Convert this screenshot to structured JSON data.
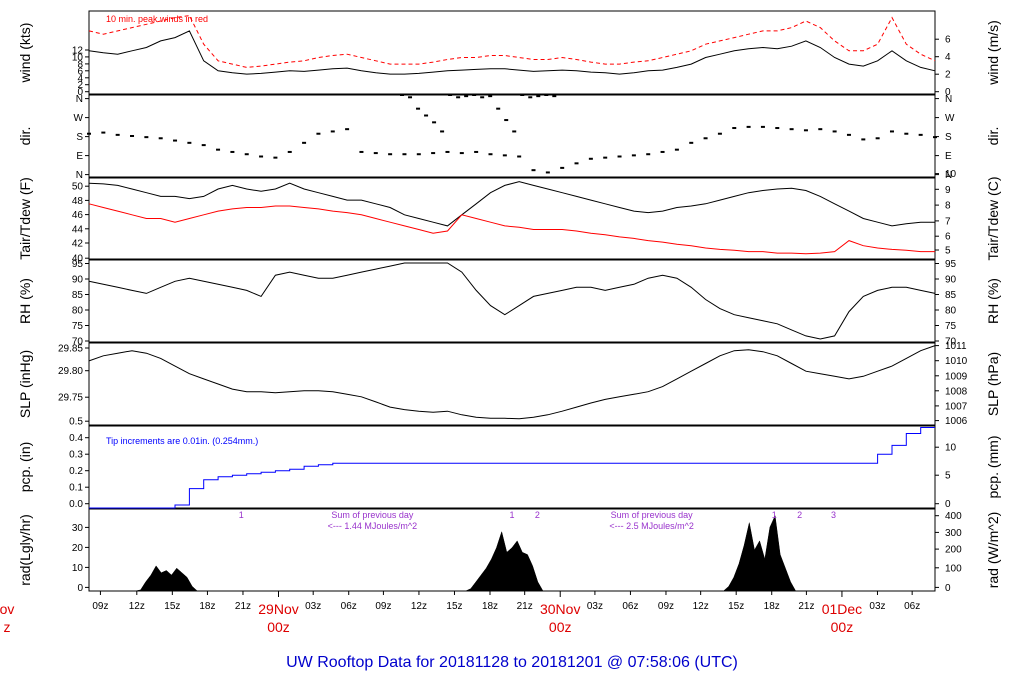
{
  "title": "UW Rooftop Data for 20181128  to  20181201 @ 07:58:06  (UTC)",
  "colors": {
    "black": "#000000",
    "red": "#ff0000",
    "blue": "#0000ff",
    "purple": "#9933cc",
    "title": "#0000cc"
  },
  "chart_data": [
    {
      "type": "line",
      "panel": "wind",
      "ylabel": "wind (kts)",
      "ylabel_right": "wind (m/s)",
      "ylim": [
        0,
        12.5
      ],
      "yticks": [
        0,
        2,
        4,
        6,
        8,
        10,
        12
      ],
      "yticks_right": [
        0,
        2,
        4,
        6
      ],
      "annotation": "10 min. peak winds in red",
      "series": [
        {
          "values": [
            6.5,
            6.2,
            6.0,
            6.5,
            7.0,
            8.0,
            8.5,
            9.5,
            5.0,
            3.5,
            3.2,
            3.0,
            3.1,
            3.3,
            3.5,
            3.4,
            3.6,
            3.8,
            3.9,
            3.5,
            3.2,
            3.0,
            3.0,
            3.1,
            3.3,
            3.5,
            3.6,
            3.7,
            3.8,
            3.8,
            3.6,
            3.4,
            3.5,
            3.6,
            3.5,
            3.3,
            3.2,
            3.0,
            3.2,
            3.5,
            3.6,
            4.0,
            4.5,
            5.5,
            6.0,
            6.5,
            6.8,
            7.0,
            6.8,
            7.2,
            8.0,
            7.0,
            5.5,
            4.5,
            4.2,
            5.0,
            6.5,
            5.0,
            4.0,
            3.5
          ]
        },
        {
          "values": [
            9.5,
            9.0,
            9.5,
            10.0,
            10.5,
            11.0,
            11.5,
            11.8,
            7.5,
            5.0,
            4.5,
            4.0,
            4.2,
            4.5,
            4.8,
            5.0,
            5.5,
            5.8,
            6.0,
            5.5,
            5.0,
            4.5,
            4.5,
            4.5,
            4.8,
            5.2,
            5.5,
            5.5,
            5.8,
            5.8,
            5.5,
            5.2,
            5.2,
            5.5,
            5.2,
            4.8,
            4.5,
            4.5,
            4.8,
            5.0,
            5.5,
            6.0,
            6.5,
            7.5,
            8.0,
            8.5,
            9.0,
            9.5,
            9.5,
            10.0,
            11.0,
            10.0,
            8.0,
            6.5,
            6.5,
            7.5,
            11.5,
            7.5,
            6.0,
            5.0
          ]
        }
      ]
    },
    {
      "type": "scatter",
      "panel": "dir",
      "ylabel": "dir.",
      "ylabel_right": "dir.",
      "ylim": [
        0,
        360
      ],
      "yticks": [
        "N",
        "E",
        "S",
        "W",
        "N"
      ],
      "series": [
        {
          "values": [
            190,
            195,
            185,
            180,
            175,
            170,
            160,
            150,
            140,
            120,
            110,
            100,
            90,
            85,
            110,
            150,
            190,
            200,
            210,
            110,
            105,
            100,
            100,
            100,
            105,
            110,
            105,
            110,
            100,
            95,
            90,
            30,
            20,
            40,
            60,
            80,
            85,
            90,
            95,
            100,
            110,
            120,
            150,
            170,
            190,
            215,
            220,
            220,
            215,
            210,
            205,
            210,
            200,
            185,
            165,
            170,
            200,
            190,
            185,
            175
          ]
        },
        {
          "values": [
            360,
            350,
            300,
            270,
            240,
            200,
            360,
            350,
            355,
            360,
            350,
            355,
            300,
            250,
            200,
            360,
            350,
            355,
            360,
            355
          ]
        }
      ]
    },
    {
      "type": "line",
      "panel": "temperature",
      "ylabel": "Tair/Tdew (F)",
      "ylabel_right": "Tair/Tdew (C)",
      "ylim": [
        40,
        51
      ],
      "yticks": [
        40,
        42,
        44,
        46,
        48,
        50
      ],
      "yticks_right": [
        5,
        6,
        7,
        8,
        9,
        10
      ],
      "series": [
        {
          "values": [
            50.3,
            50.2,
            50.0,
            49.5,
            49.0,
            48.5,
            48.5,
            48.2,
            48.5,
            49.5,
            50.0,
            49.5,
            49.2,
            49.5,
            50.3,
            49.5,
            49.0,
            48.5,
            48.0,
            48.0,
            47.5,
            47.0,
            46.0,
            45.5,
            45.0,
            44.5,
            46.0,
            47.5,
            49.0,
            50.0,
            50.5,
            50.0,
            49.5,
            49.0,
            48.5,
            48.0,
            47.5,
            47.0,
            46.5,
            46.3,
            46.5,
            47.0,
            47.2,
            47.5,
            48.0,
            48.5,
            49.0,
            49.3,
            49.5,
            49.6,
            49.3,
            48.5,
            47.5,
            46.5,
            45.5,
            45.0,
            44.5,
            44.8,
            45.0,
            45.0
          ]
        },
        {
          "values": [
            47.5,
            47.0,
            46.5,
            46.0,
            45.5,
            45.5,
            45.0,
            45.5,
            46.0,
            46.5,
            46.8,
            47.0,
            47.0,
            47.2,
            47.2,
            47.0,
            46.8,
            46.5,
            46.3,
            46.0,
            45.5,
            45.0,
            44.5,
            44.0,
            43.5,
            43.8,
            46.0,
            45.5,
            45.0,
            44.5,
            44.3,
            44.0,
            44.0,
            44.0,
            43.8,
            43.5,
            43.3,
            43.0,
            42.8,
            42.5,
            42.3,
            42.0,
            41.8,
            41.5,
            41.3,
            41.2,
            41.0,
            41.0,
            40.8,
            40.8,
            40.7,
            40.8,
            41.0,
            42.5,
            41.8,
            41.5,
            41.3,
            41.2,
            41.0,
            41.0
          ]
        }
      ]
    },
    {
      "type": "line",
      "panel": "rh",
      "ylabel": "RH (%)",
      "ylabel_right": "RH (%)",
      "ylim": [
        70,
        97
      ],
      "yticks": [
        70,
        75,
        80,
        85,
        90,
        95
      ],
      "series": [
        {
          "values": [
            90,
            89,
            88,
            87,
            86,
            88,
            90,
            91,
            90,
            89,
            88,
            87,
            85,
            92,
            93,
            92,
            91,
            91,
            92,
            93,
            94,
            95,
            96,
            96,
            96,
            96,
            93,
            87,
            82,
            79,
            82,
            85,
            86,
            87,
            88,
            88,
            87,
            88,
            89,
            91,
            92,
            91,
            88,
            84,
            81,
            79,
            78,
            77,
            76,
            74,
            72,
            71,
            72,
            80,
            85,
            87,
            88,
            88,
            87,
            86
          ]
        }
      ]
    },
    {
      "type": "line",
      "panel": "slp",
      "ylabel": "SLP (inHg)",
      "ylabel_right": "SLP (hPa)",
      "ylim": [
        29.695,
        29.855
      ],
      "yticks": [
        29.75,
        29.8,
        29.85
      ],
      "yticks_right": [
        1006,
        1007,
        1008,
        1009,
        1010,
        1011
      ],
      "series": [
        {
          "values": [
            29.82,
            29.83,
            29.835,
            29.84,
            29.835,
            29.825,
            29.81,
            29.795,
            29.785,
            29.775,
            29.765,
            29.76,
            29.76,
            29.758,
            29.76,
            29.762,
            29.762,
            29.76,
            29.755,
            29.75,
            29.74,
            29.73,
            29.725,
            29.722,
            29.72,
            29.722,
            29.715,
            29.71,
            29.708,
            29.708,
            29.707,
            29.71,
            29.715,
            29.722,
            29.73,
            29.738,
            29.745,
            29.75,
            29.755,
            29.76,
            29.77,
            29.785,
            29.8,
            29.815,
            29.83,
            29.84,
            29.842,
            29.838,
            29.83,
            29.815,
            29.8,
            29.795,
            29.79,
            29.785,
            29.79,
            29.8,
            29.81,
            29.825,
            29.84,
            29.85
          ]
        }
      ]
    },
    {
      "type": "line",
      "panel": "pcp",
      "ylabel": "pcp. (in)",
      "ylabel_right": "pcp. (mm)",
      "ylim": [
        0,
        0.55
      ],
      "yticks": [
        0.0,
        0.1,
        0.2,
        0.3,
        0.4,
        0.5
      ],
      "yticks_right": [
        0,
        5,
        10
      ],
      "annotation": "Tip increments are 0.01in. (0.254mm.)",
      "series": [
        {
          "values": [
            0.0,
            0.0,
            0.0,
            0.0,
            0.0,
            0.0,
            0.02,
            0.13,
            0.19,
            0.21,
            0.22,
            0.23,
            0.24,
            0.25,
            0.26,
            0.28,
            0.29,
            0.3,
            0.3,
            0.3,
            0.3,
            0.3,
            0.3,
            0.3,
            0.3,
            0.3,
            0.3,
            0.3,
            0.3,
            0.3,
            0.3,
            0.3,
            0.3,
            0.3,
            0.3,
            0.3,
            0.3,
            0.3,
            0.3,
            0.3,
            0.3,
            0.3,
            0.3,
            0.3,
            0.3,
            0.3,
            0.3,
            0.3,
            0.3,
            0.3,
            0.3,
            0.3,
            0.3,
            0.3,
            0.3,
            0.36,
            0.42,
            0.5,
            0.54,
            0.54
          ]
        }
      ]
    },
    {
      "type": "area",
      "panel": "rad",
      "ylabel": "rad(Lgly/hr)",
      "ylabel_right": "rad (W/m^2)",
      "ylim": [
        0,
        36
      ],
      "yticks": [
        0,
        10,
        20,
        30
      ],
      "yticks_right": [
        0,
        100,
        200,
        300,
        400
      ],
      "series": [
        {
          "values": [
            0,
            0,
            0,
            0,
            0,
            0,
            0,
            0,
            0,
            0,
            0.5,
            4,
            7,
            11,
            8,
            9,
            7,
            10,
            8,
            6,
            2,
            0,
            0,
            0,
            0,
            0,
            0,
            0,
            0,
            0,
            0,
            0,
            0,
            0,
            0,
            0,
            0,
            0,
            0,
            0,
            0,
            0,
            0,
            0,
            0,
            0,
            0,
            0,
            0,
            0,
            0,
            0,
            0,
            0,
            0,
            0,
            0,
            0,
            0,
            0,
            0,
            0,
            0,
            0,
            0,
            0,
            0,
            0,
            0,
            0,
            0,
            0,
            0,
            0,
            1,
            4,
            7,
            10,
            14,
            19,
            26,
            17,
            19,
            22,
            17,
            16,
            11,
            4,
            0,
            0,
            0,
            0,
            0,
            0,
            0,
            0,
            0,
            0,
            0,
            0,
            0,
            0,
            0,
            0,
            0,
            0,
            0,
            0,
            0,
            0,
            0,
            0,
            0,
            0,
            0,
            0,
            0,
            0,
            0,
            0,
            0,
            0,
            0,
            0,
            2,
            6,
            12,
            20,
            30,
            18,
            22,
            14,
            28,
            33,
            16,
            10,
            4,
            0,
            0,
            0,
            0,
            0,
            0,
            0,
            0,
            0,
            0,
            0,
            0,
            0,
            0,
            0,
            0,
            0,
            0,
            0,
            0,
            0,
            0,
            0,
            0,
            0,
            0,
            0,
            0
          ]
        }
      ],
      "annotations": [
        {
          "text": "1",
          "x": 0.18
        },
        {
          "text": "Sum of previous day",
          "x": 0.335
        },
        {
          "text": "<--- 1.44 MJoules/m^2",
          "x": 0.335
        },
        {
          "text": "1",
          "x": 0.5
        },
        {
          "text": "2",
          "x": 0.53
        },
        {
          "text": "Sum of previous day",
          "x": 0.665
        },
        {
          "text": "<--- 2.5 MJoules/m^2",
          "x": 0.665
        },
        {
          "text": "1",
          "x": 0.81
        },
        {
          "text": "2",
          "x": 0.84
        },
        {
          "text": "3",
          "x": 0.88
        }
      ]
    }
  ],
  "xaxis": {
    "ticks": [
      {
        "label": "09z",
        "pos": 0.0135
      },
      {
        "label": "12z",
        "pos": 0.0565
      },
      {
        "label": "15z",
        "pos": 0.0985
      },
      {
        "label": "18z",
        "pos": 0.14
      },
      {
        "label": "21z",
        "pos": 0.182
      },
      {
        "label": "03z",
        "pos": 0.265
      },
      {
        "label": "06z",
        "pos": 0.307
      },
      {
        "label": "09z",
        "pos": 0.348
      },
      {
        "label": "12z",
        "pos": 0.39
      },
      {
        "label": "15z",
        "pos": 0.432
      },
      {
        "label": "18z",
        "pos": 0.474
      },
      {
        "label": "21z",
        "pos": 0.515
      },
      {
        "label": "03z",
        "pos": 0.598
      },
      {
        "label": "06z",
        "pos": 0.64
      },
      {
        "label": "09z",
        "pos": 0.682
      },
      {
        "label": "12z",
        "pos": 0.723
      },
      {
        "label": "15z",
        "pos": 0.765
      },
      {
        "label": "18z",
        "pos": 0.807
      },
      {
        "label": "21z",
        "pos": 0.848
      },
      {
        "label": "03z",
        "pos": 0.932
      },
      {
        "label": "06z",
        "pos": 0.973
      }
    ],
    "days": [
      {
        "date": "ov",
        "hour": "z",
        "pos": -0.1
      },
      {
        "date": "29Nov",
        "hour": "00z",
        "pos": 0.224
      },
      {
        "date": "30Nov",
        "hour": "00z",
        "pos": 0.557
      },
      {
        "date": "01Dec",
        "hour": "00z",
        "pos": 0.89
      }
    ]
  }
}
